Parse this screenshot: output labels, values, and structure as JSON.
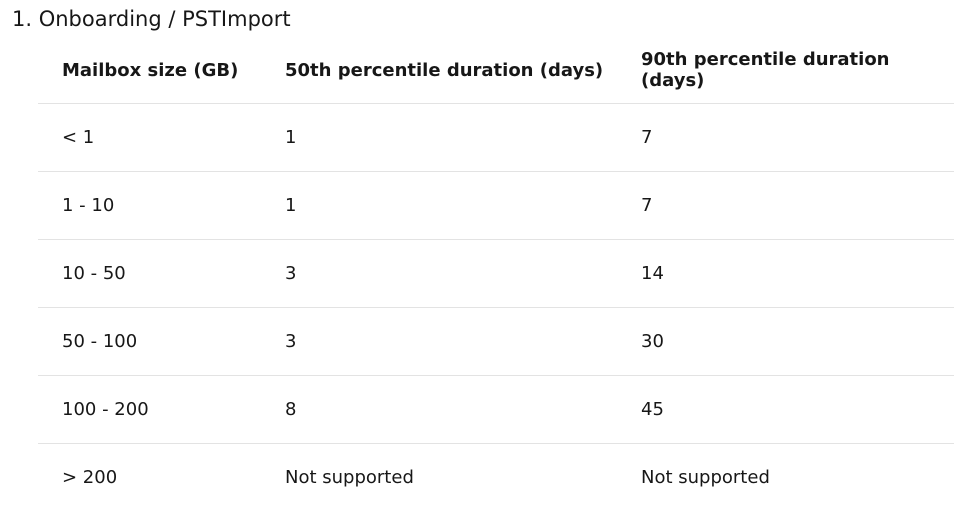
{
  "heading": "1. Onboarding / PSTImport",
  "table": {
    "header": [
      "Mailbox size (GB)",
      "50th percentile duration (days)",
      "90th percentile duration (days)"
    ],
    "rows": [
      [
        "< 1",
        1,
        7
      ],
      [
        "1 - 10",
        1,
        7
      ],
      [
        "10 - 50",
        3,
        14
      ],
      [
        "50 - 100",
        3,
        30
      ],
      [
        "100 - 200",
        8,
        45
      ],
      [
        "> 200",
        "Not supported",
        "Not supported"
      ]
    ]
  }
}
